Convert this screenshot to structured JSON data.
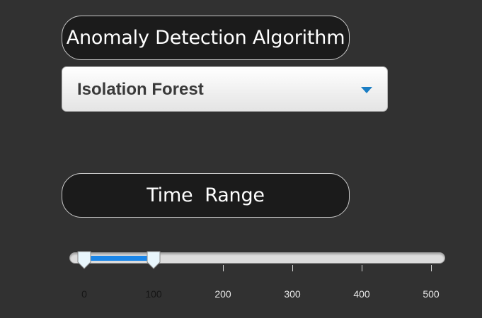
{
  "algorithm": {
    "label": "Anomaly Detection Algorithm",
    "selected": "Isolation Forest"
  },
  "time_range": {
    "label": "Time  Range",
    "min": 0,
    "max": 500,
    "low": 0,
    "high": 100,
    "ticks": [
      {
        "value": 0,
        "label": "0"
      },
      {
        "value": 100,
        "label": "100"
      },
      {
        "value": 200,
        "label": "200"
      },
      {
        "value": 300,
        "label": "300"
      },
      {
        "value": 400,
        "label": "400"
      },
      {
        "value": 500,
        "label": "500"
      }
    ]
  },
  "colors": {
    "background": "#313131",
    "accent": "#1b86e8",
    "caret": "#1b7ec4"
  },
  "icons": {
    "dropdown_caret": "caret-down-icon",
    "slider_handle": "slider-handle-icon"
  }
}
